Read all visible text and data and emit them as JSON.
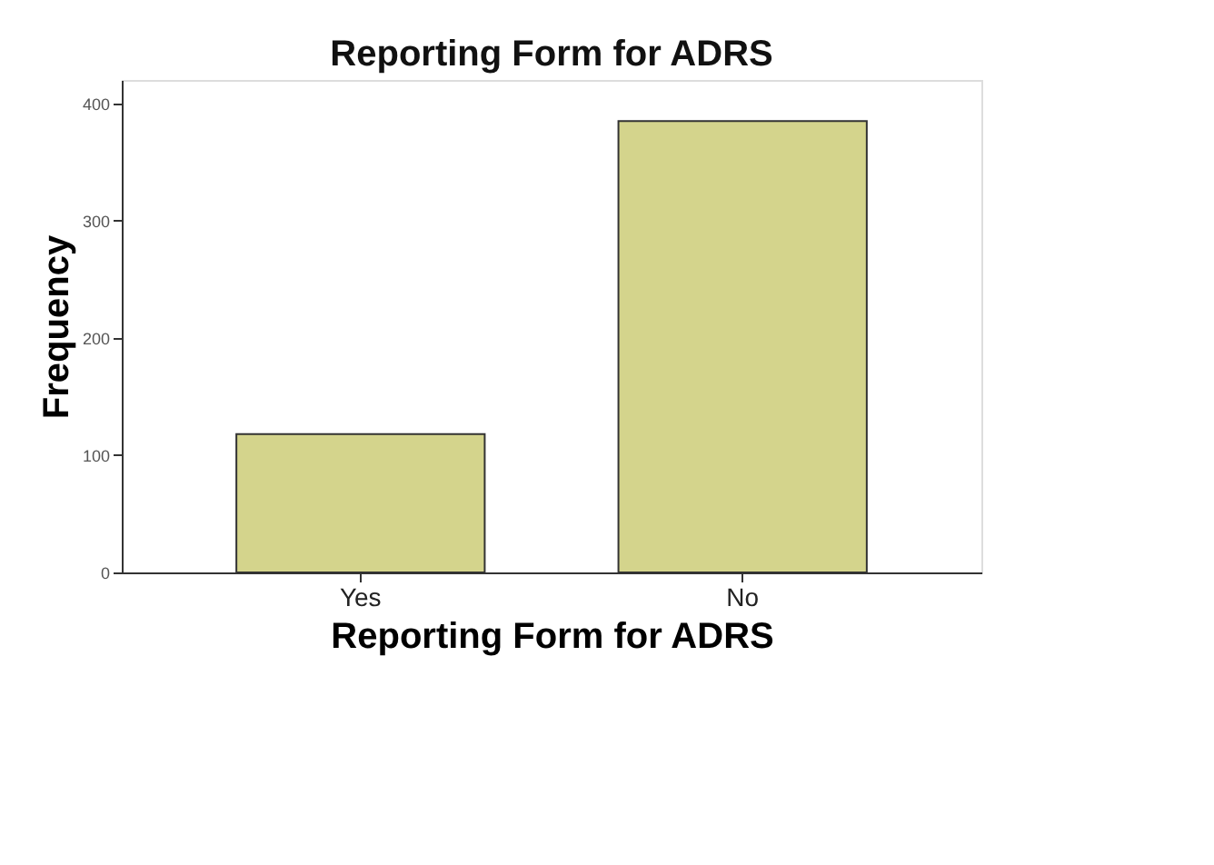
{
  "chart_data": {
    "type": "bar",
    "title": "Reporting Form for ADRS",
    "xlabel": "Reporting Form for ADRS",
    "ylabel": "Frequency",
    "categories": [
      "Yes",
      "No"
    ],
    "values": [
      118,
      385
    ],
    "color": "#d4d48c",
    "ylim": [
      0,
      420
    ],
    "yticks": [
      0,
      100,
      200,
      300,
      400
    ],
    "grid": false
  }
}
